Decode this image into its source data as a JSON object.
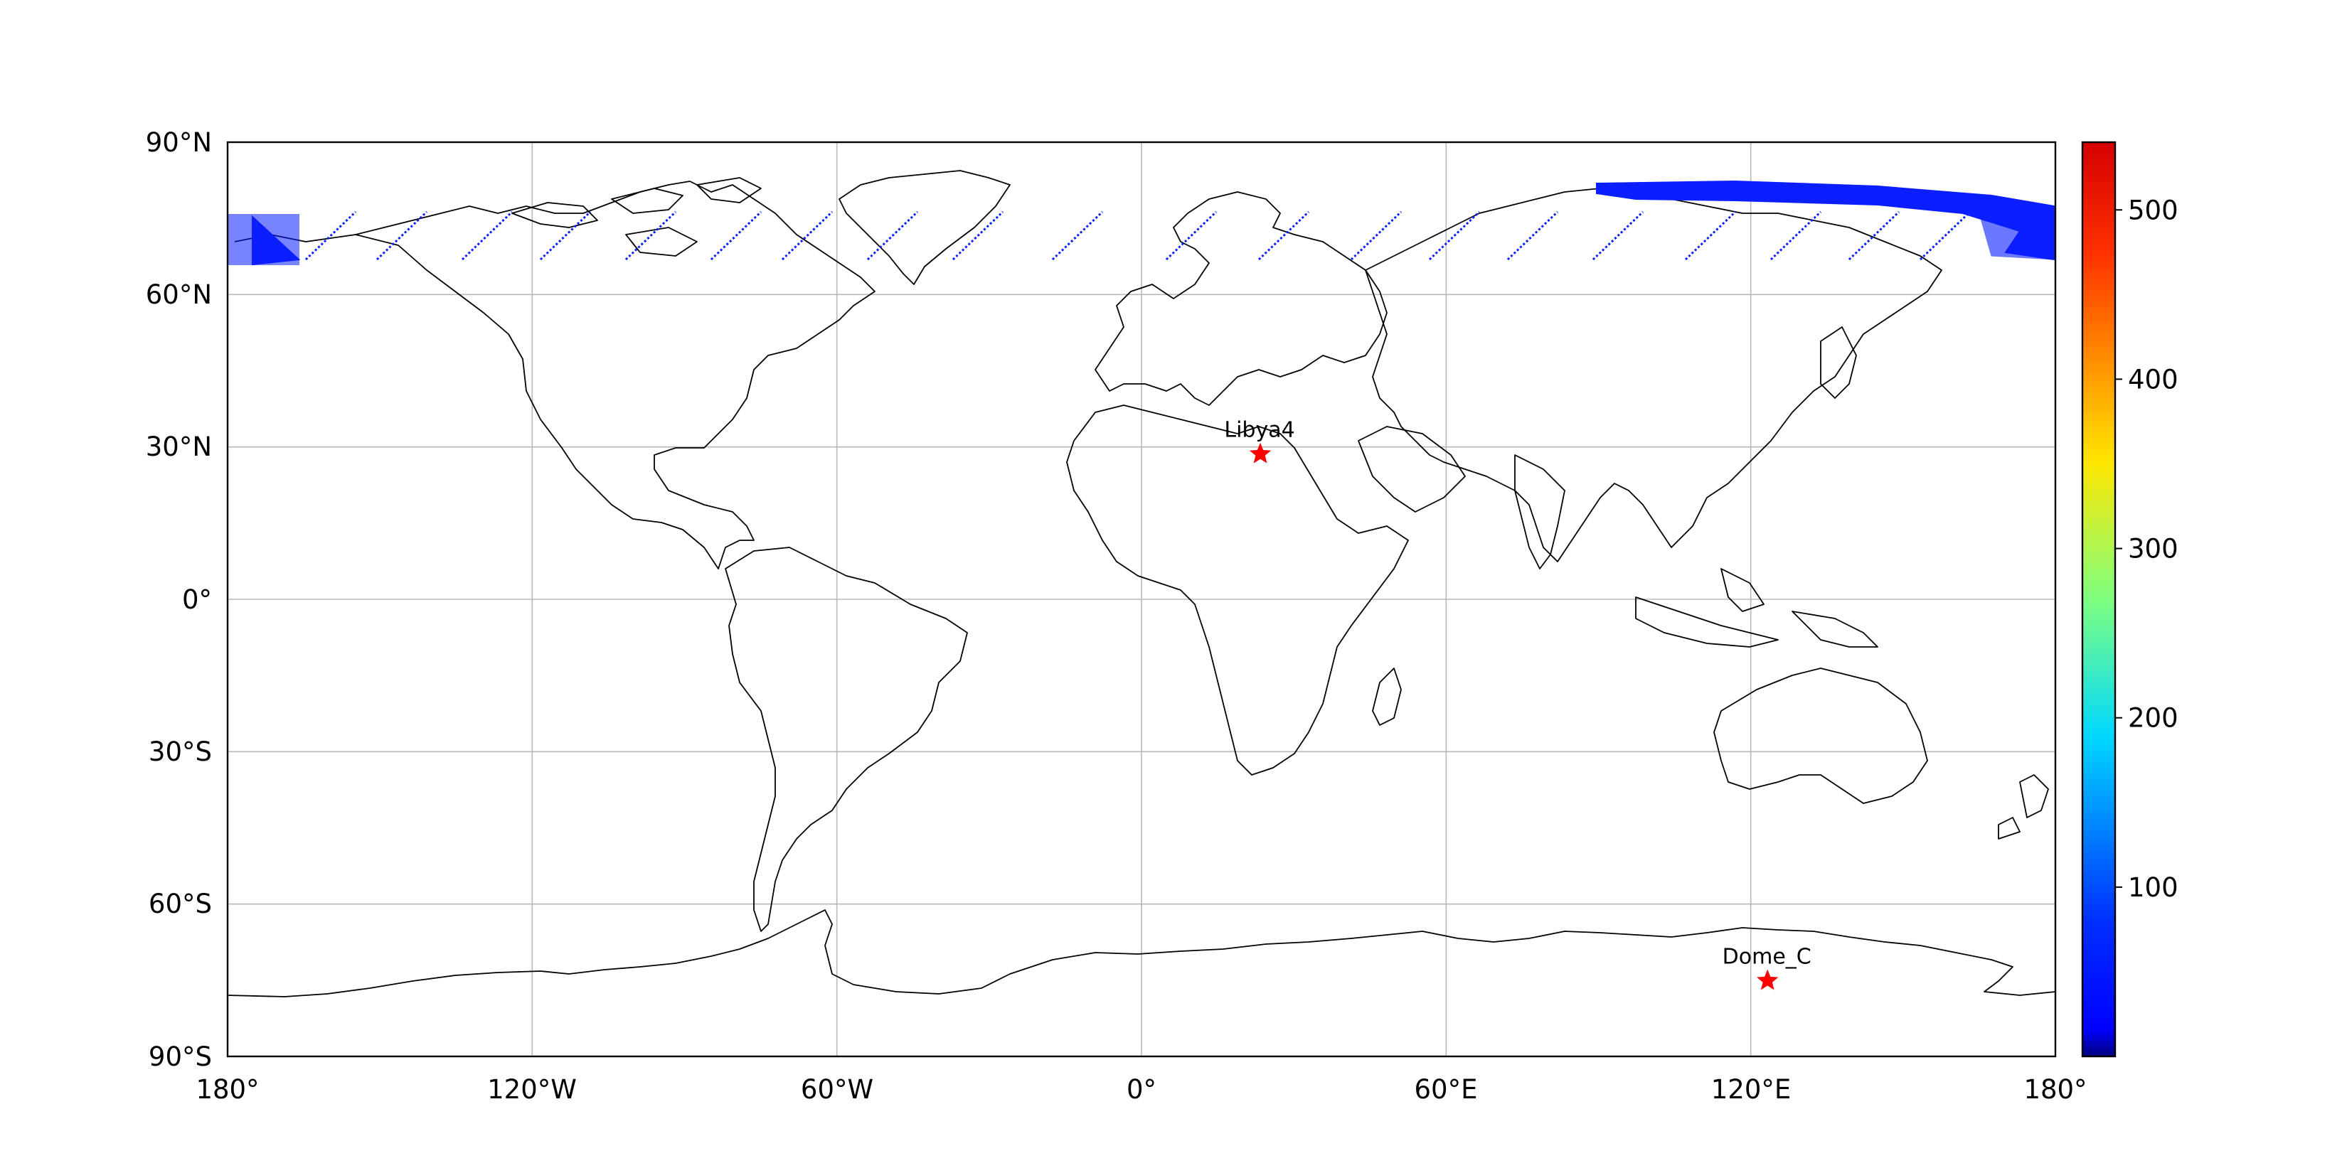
{
  "map": {
    "projection": "PlateCarree",
    "extent": {
      "lon": [
        -180,
        180
      ],
      "lat": [
        -90,
        90
      ]
    },
    "gridlines": true,
    "x_ticks": [
      {
        "lon": -180,
        "label": "180°"
      },
      {
        "lon": -120,
        "label": "120°W"
      },
      {
        "lon": -60,
        "label": "60°W"
      },
      {
        "lon": 0,
        "label": "0°"
      },
      {
        "lon": 60,
        "label": "60°E"
      },
      {
        "lon": 120,
        "label": "120°E"
      },
      {
        "lon": 180,
        "label": "180°"
      }
    ],
    "y_ticks": [
      {
        "lat": 90,
        "label": "90°N"
      },
      {
        "lat": 60,
        "label": "60°N"
      },
      {
        "lat": 30,
        "label": "30°N"
      },
      {
        "lat": 0,
        "label": "0°"
      },
      {
        "lat": -30,
        "label": "30°S"
      },
      {
        "lat": -60,
        "label": "60°S"
      },
      {
        "lat": -90,
        "label": "90°S"
      }
    ],
    "sites": [
      {
        "name": "Libya4",
        "lon": 23.4,
        "lat": 28.6,
        "color": "#ff0000"
      },
      {
        "name": "Dome_C",
        "lon": 123.3,
        "lat": -75.1,
        "color": "#ff0000"
      }
    ],
    "swath_color": "#0a1eff",
    "colorbar": {
      "colormap": "jet",
      "range": [
        0,
        540
      ],
      "ticks": [
        {
          "value": 100,
          "label": "100"
        },
        {
          "value": 200,
          "label": "200"
        },
        {
          "value": 300,
          "label": "300"
        },
        {
          "value": 400,
          "label": "400"
        },
        {
          "value": 500,
          "label": "500"
        }
      ]
    }
  }
}
